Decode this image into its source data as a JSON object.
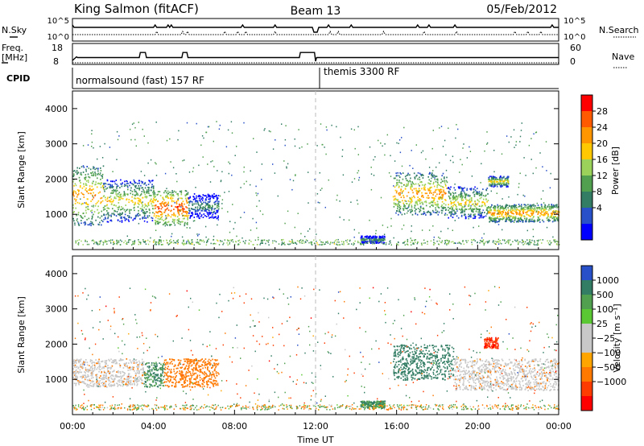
{
  "header": {
    "station": "King Salmon (fitACF)",
    "beam": "Beam 13",
    "date": "05/Feb/2012"
  },
  "top_panel": {
    "left_label": "N.Sky",
    "right_label": "N.Search",
    "left_ticks": [
      "10^5",
      "10^0"
    ],
    "right_ticks": [
      "10^5",
      "10^0"
    ]
  },
  "freq_panel": {
    "left_label_1": "Freq.",
    "left_label_2": "[MHz]",
    "right_label": "Nave",
    "left_ticks": [
      "18",
      "8"
    ],
    "right_ticks": [
      "60",
      "0"
    ],
    "freq_data_mhz": {
      "x_hours": [
        0,
        0.2,
        0.25,
        3.3,
        3.35,
        3.6,
        3.65,
        5.4,
        5.45,
        5.65,
        5.7,
        11.2,
        11.25,
        11.95,
        12.0,
        12.05,
        24
      ],
      "values": [
        8.5,
        11,
        10.5,
        10.5,
        14,
        14,
        10.5,
        10.5,
        14,
        14,
        10.5,
        10.5,
        14,
        14,
        8,
        10.5,
        10.5
      ]
    }
  },
  "cpid": {
    "label": "CPID",
    "segments": [
      {
        "name": "normalsound (fast) 157 RF",
        "start_hour": 0,
        "end_hour": 12
      },
      {
        "name": "themis 3300 RF",
        "start_hour": 12,
        "end_hour": 24
      }
    ]
  },
  "chart_data": [
    {
      "type": "heatmap",
      "ylabel": "Slant Range [km]",
      "xlim_hours": [
        0,
        24
      ],
      "ylim": [
        0,
        4500
      ],
      "yticks": [
        "1000",
        "2000",
        "3000",
        "4000"
      ],
      "xticks": [
        "00:00",
        "04:00",
        "08:00",
        "12:00",
        "16:00",
        "20:00",
        "00:00"
      ],
      "colorbar": {
        "label": "Power [dB]",
        "ticks": [
          "28",
          "24",
          "20",
          "16",
          "12",
          "8",
          "4"
        ],
        "colors": [
          "#ff0000",
          "#ff5a00",
          "#ff9600",
          "#ffc800",
          "#9bd25a",
          "#50a050",
          "#327d64",
          "#2850c8",
          "#0000ff"
        ]
      },
      "features": [
        {
          "from_hour": 0.0,
          "to_hour": 1.5,
          "range_km": [
            700,
            2400
          ],
          "peak_db": 24
        },
        {
          "from_hour": 1.5,
          "to_hour": 4.0,
          "range_km": [
            800,
            2000
          ],
          "peak_db": 20
        },
        {
          "from_hour": 4.0,
          "to_hour": 5.7,
          "range_km": [
            700,
            1700
          ],
          "peak_db": 28
        },
        {
          "from_hour": 5.7,
          "to_hour": 7.2,
          "range_km": [
            900,
            1600
          ],
          "peak_db": 12
        },
        {
          "from_hour": 14.2,
          "to_hour": 15.4,
          "range_km": [
            200,
            400
          ],
          "peak_db": 12
        },
        {
          "from_hour": 15.8,
          "to_hour": 18.5,
          "range_km": [
            1000,
            2200
          ],
          "peak_db": 24
        },
        {
          "from_hour": 18.5,
          "to_hour": 20.5,
          "range_km": [
            900,
            1800
          ],
          "peak_db": 20
        },
        {
          "from_hour": 20.5,
          "to_hour": 24.0,
          "range_km": [
            800,
            1300
          ],
          "peak_db": 24
        },
        {
          "from_hour": 20.5,
          "to_hour": 21.5,
          "range_km": [
            1800,
            2100
          ],
          "peak_db": 20
        }
      ]
    },
    {
      "type": "heatmap",
      "ylabel": "Slant Range [km]",
      "xlabel": "Time UT",
      "xlim_hours": [
        0,
        24
      ],
      "ylim": [
        0,
        4500
      ],
      "yticks": [
        "1000",
        "2000",
        "3000",
        "4000"
      ],
      "xticks": [
        "00:00",
        "04:00",
        "08:00",
        "12:00",
        "16:00",
        "20:00",
        "00:00"
      ],
      "colorbar": {
        "label": "Velocity [m s⁻¹]",
        "ticks": [
          "1000",
          "500",
          "100",
          "25",
          "−25",
          "−100",
          "−500",
          "−1000"
        ],
        "colors": [
          "#2850c8",
          "#327d64",
          "#50a050",
          "#5ac832",
          "#c8c8c8",
          "#c8c8c8",
          "#ffa500",
          "#ff7800",
          "#ff3c00",
          "#ff0000"
        ]
      },
      "features": [
        {
          "from_hour": 0.0,
          "to_hour": 3.5,
          "range_km": [
            800,
            1600
          ],
          "category": "ground_scatter"
        },
        {
          "from_hour": 3.5,
          "to_hour": 4.5,
          "range_km": [
            800,
            1500
          ],
          "velocity": 300
        },
        {
          "from_hour": 4.5,
          "to_hour": 7.2,
          "range_km": [
            800,
            1600
          ],
          "velocity": -200
        },
        {
          "from_hour": 14.2,
          "to_hour": 15.4,
          "range_km": [
            200,
            400
          ],
          "velocity": 300
        },
        {
          "from_hour": 15.8,
          "to_hour": 18.8,
          "range_km": [
            1000,
            2000
          ],
          "velocity": 400
        },
        {
          "from_hour": 18.8,
          "to_hour": 24.0,
          "range_km": [
            700,
            1600
          ],
          "category": "ground_scatter"
        },
        {
          "from_hour": 20.3,
          "to_hour": 21.0,
          "range_km": [
            1900,
            2200
          ],
          "velocity": -700
        }
      ]
    }
  ]
}
